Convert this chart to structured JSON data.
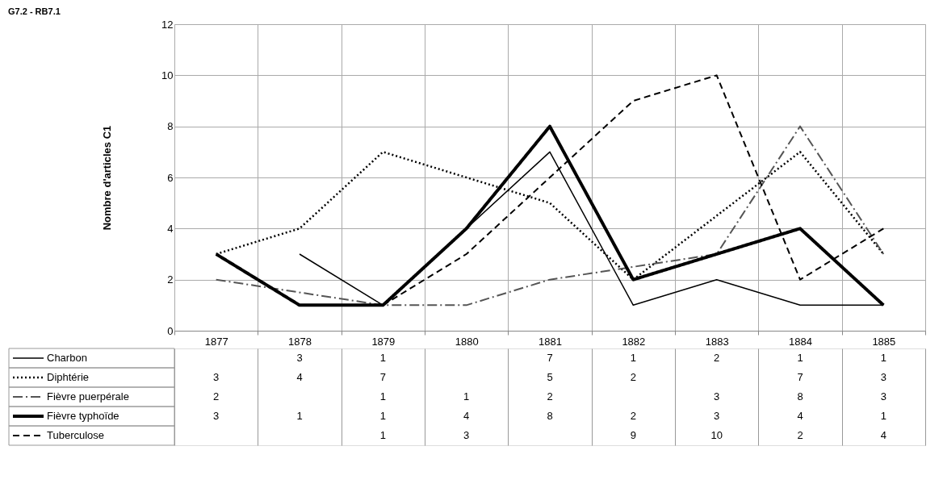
{
  "chart_data": {
    "type": "line",
    "title": "G7.2 - RB7.1",
    "ylabel": "Nombre d'articles C1",
    "categories": [
      "1877",
      "1878",
      "1879",
      "1880",
      "1881",
      "1882",
      "1883",
      "1884",
      "1885"
    ],
    "series": [
      {
        "name": "Charbon",
        "color": "#000000",
        "line_style": "solid",
        "values": [
          null,
          3,
          1,
          null,
          7,
          1,
          2,
          1,
          1
        ]
      },
      {
        "name": "Diphtérie",
        "color": "#000000",
        "line_style": "dotted",
        "values": [
          3,
          4,
          7,
          null,
          5,
          2,
          null,
          7,
          3
        ]
      },
      {
        "name": "Fièvre puerpérale",
        "color": "#555555",
        "line_style": "dashdot",
        "values": [
          2,
          null,
          1,
          1,
          2,
          null,
          3,
          8,
          3
        ]
      },
      {
        "name": "Fièvre typhoïde",
        "color": "#000000",
        "line_style": "bold",
        "values": [
          3,
          1,
          1,
          4,
          8,
          2,
          3,
          4,
          1
        ]
      },
      {
        "name": "Tuberculose",
        "color": "#000000",
        "line_style": "dashed",
        "values": [
          null,
          null,
          1,
          3,
          null,
          9,
          10,
          2,
          4
        ]
      }
    ],
    "ylim": [
      0,
      12
    ],
    "yticks": [
      0,
      2,
      4,
      6,
      8,
      10,
      12
    ],
    "grid": true,
    "legend": "bottom left",
    "data_labels": true
  }
}
